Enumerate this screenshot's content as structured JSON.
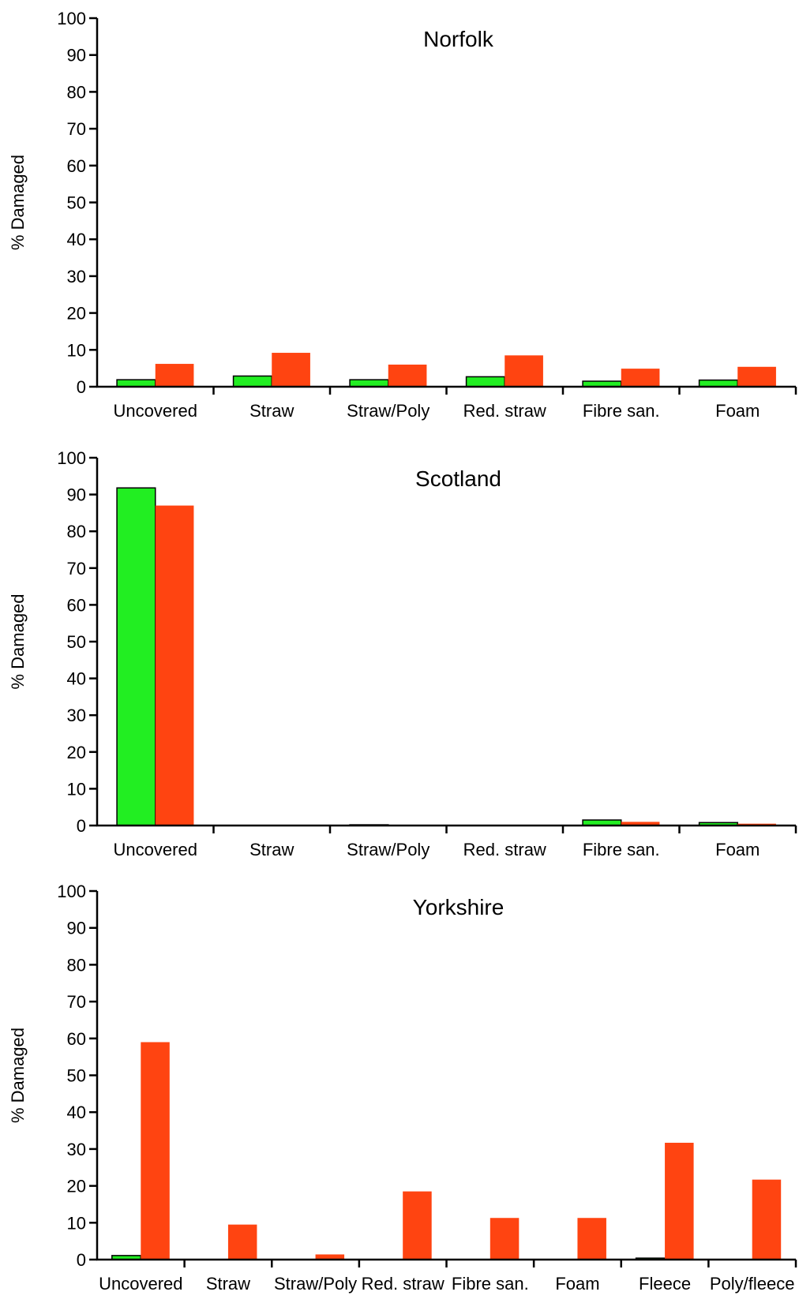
{
  "colors": {
    "series1": "#22ee22",
    "series2": "#ff4411",
    "axis": "#000000",
    "background": "#ffffff"
  },
  "chart_data": [
    {
      "type": "bar",
      "title": "Norfolk",
      "ylabel": "% Damaged",
      "xlabel": "",
      "ylim": [
        0,
        100
      ],
      "yticks": [
        0,
        10,
        20,
        30,
        40,
        50,
        60,
        70,
        80,
        90,
        100
      ],
      "categories": [
        "Uncovered",
        "Straw",
        "Straw/Poly",
        "Red. straw",
        "Fibre san.",
        "Foam"
      ],
      "series": [
        {
          "values": [
            1.9,
            2.9,
            1.9,
            2.7,
            1.5,
            1.8
          ]
        },
        {
          "values": [
            6.2,
            9.2,
            6.0,
            8.5,
            4.9,
            5.4
          ]
        }
      ],
      "grid": false,
      "legend": "none"
    },
    {
      "type": "bar",
      "title": "Scotland",
      "ylabel": "% Damaged",
      "xlabel": "",
      "ylim": [
        0,
        100
      ],
      "yticks": [
        0,
        10,
        20,
        30,
        40,
        50,
        60,
        70,
        80,
        90,
        100
      ],
      "categories": [
        "Uncovered",
        "Straw",
        "Straw/Poly",
        "Red. straw",
        "Fibre san.",
        "Foam"
      ],
      "series": [
        {
          "values": [
            91.8,
            0,
            0.2,
            0,
            1.5,
            0.8
          ]
        },
        {
          "values": [
            87.0,
            0,
            0.2,
            0,
            1.0,
            0.5
          ]
        }
      ],
      "grid": false,
      "legend": "none"
    },
    {
      "type": "bar",
      "title": "Yorkshire",
      "ylabel": "% Damaged",
      "xlabel": "",
      "ylim": [
        0,
        100
      ],
      "yticks": [
        0,
        10,
        20,
        30,
        40,
        50,
        60,
        70,
        80,
        90,
        100
      ],
      "categories": [
        "Uncovered",
        "Straw",
        "Straw/Poly",
        "Red. straw",
        "Fibre san.",
        "Foam",
        "Fleece",
        "Poly/fleece"
      ],
      "series": [
        {
          "values": [
            1.1,
            0,
            0,
            0,
            0,
            0,
            0.4,
            0
          ]
        },
        {
          "values": [
            59.0,
            9.5,
            1.4,
            18.5,
            11.3,
            11.3,
            31.7,
            21.7
          ]
        }
      ],
      "grid": false,
      "legend": "none"
    }
  ]
}
